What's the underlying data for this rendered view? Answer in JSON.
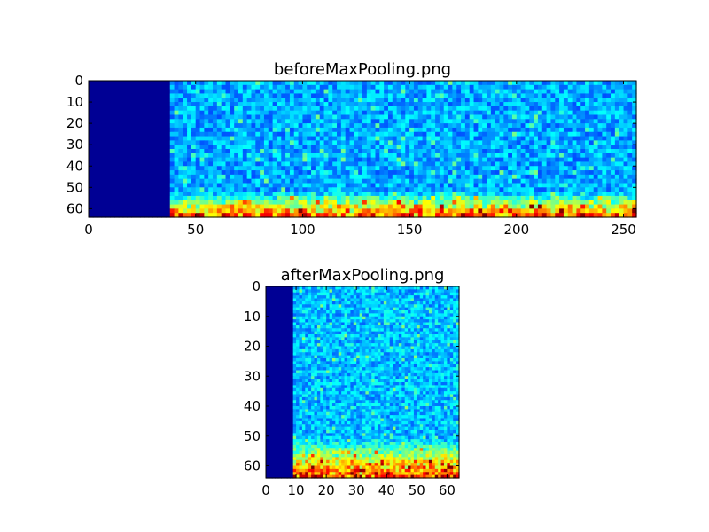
{
  "chart_data": [
    {
      "type": "heatmap",
      "title": "beforeMaxPooling.png",
      "xlabel": "",
      "ylabel": "",
      "xlim": [
        0,
        256
      ],
      "ylim": [
        64,
        0
      ],
      "grid": false,
      "colormap": "jet",
      "x_ticks": [
        0,
        50,
        100,
        150,
        200,
        250
      ],
      "y_ticks": [
        0,
        10,
        20,
        30,
        40,
        50,
        60
      ],
      "columns": 256,
      "rows": 64,
      "silent_columns_until": 38,
      "background_level": 0.2,
      "high_energy_rows_from": 52,
      "description_of_values": "uniform deep blue for columns 0-38; mostly blue noise elsewhere, with yellow/red hot spots in rows 52-64"
    },
    {
      "type": "heatmap",
      "title": "afterMaxPooling.png",
      "xlabel": "",
      "ylabel": "",
      "xlim": [
        0,
        64
      ],
      "ylim": [
        64,
        0
      ],
      "grid": false,
      "colormap": "jet",
      "x_ticks": [
        0,
        10,
        20,
        30,
        40,
        50,
        60
      ],
      "y_ticks": [
        0,
        10,
        20,
        30,
        40,
        50,
        60
      ],
      "columns": 64,
      "rows": 64,
      "silent_columns_until": 9.5,
      "background_level": 0.22,
      "high_energy_rows_from": 51,
      "description_of_values": "uniform deep blue for columns 0-9; blue elsewhere, cyan-to-yellow band with red hot spots in rows 51-64"
    }
  ],
  "colors": {
    "colormap_low": "#00007f",
    "colormap_mid": "#00ffff",
    "colormap_high": "#7f0000",
    "frame": "#000000",
    "background": "#ffffff"
  }
}
